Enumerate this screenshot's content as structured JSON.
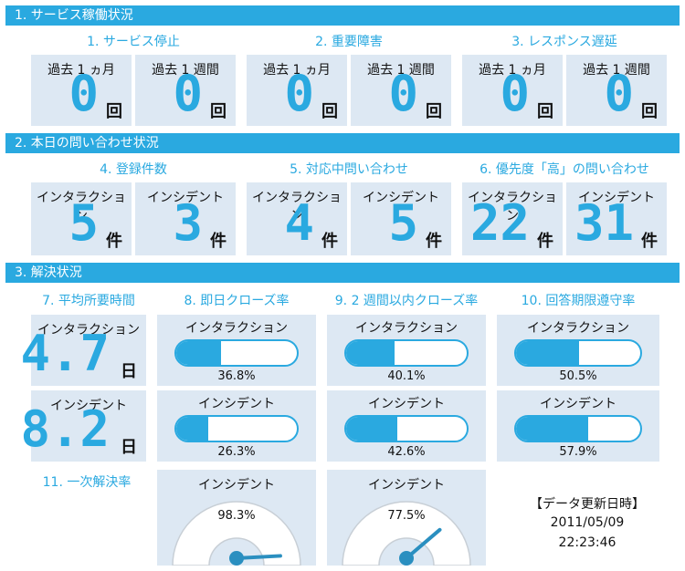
{
  "sections": [
    {
      "title": "1. サービス稼働状況",
      "groups": [
        {
          "title": "1. サービス停止",
          "cards": [
            {
              "label": "過去 1 ヵ月",
              "value": 0,
              "unit": "回"
            },
            {
              "label": "過去 1 週間",
              "value": 0,
              "unit": "回"
            }
          ]
        },
        {
          "title": "2. 重要障害",
          "cards": [
            {
              "label": "過去 1 ヵ月",
              "value": 0,
              "unit": "回"
            },
            {
              "label": "過去 1 週間",
              "value": 0,
              "unit": "回"
            }
          ]
        },
        {
          "title": "3. レスポンス遅延",
          "cards": [
            {
              "label": "過去 1 ヵ月",
              "value": 0,
              "unit": "回"
            },
            {
              "label": "過去 1 週間",
              "value": 0,
              "unit": "回"
            }
          ]
        }
      ]
    },
    {
      "title": "2. 本日の問い合わせ状況",
      "groups": [
        {
          "title": "4. 登録件数",
          "cards": [
            {
              "label": "インタラクション",
              "value": 5,
              "unit": "件"
            },
            {
              "label": "インシデント",
              "value": 3,
              "unit": "件"
            }
          ]
        },
        {
          "title": "5. 対応中問い合わせ",
          "cards": [
            {
              "label": "インタラクション",
              "value": 4,
              "unit": "件"
            },
            {
              "label": "インシデント",
              "value": 5,
              "unit": "件"
            }
          ]
        },
        {
          "title": "6. 優先度「高」の問い合わせ",
          "cards": [
            {
              "label": "インタラクション",
              "value": 22,
              "unit": "件"
            },
            {
              "label": "インシデント",
              "value": 31,
              "unit": "件"
            }
          ]
        }
      ]
    },
    {
      "title": "3. 解決状況",
      "groups": [
        {
          "title": "7. 平均所要時間",
          "cards": [
            {
              "label": "インタラクション",
              "value": 4.7,
              "unit": "日"
            },
            {
              "label": "インシデント",
              "value": 8.2,
              "unit": "日"
            }
          ]
        },
        {
          "title": "8. 即日クローズ率",
          "bars": [
            {
              "label": "インタラクション",
              "value": 36.8,
              "value_label": "36.8%"
            },
            {
              "label": "インシデント",
              "value": 26.3,
              "value_label": "26.3%"
            }
          ]
        },
        {
          "title": "9. 2 週間以内クローズ率",
          "bars": [
            {
              "label": "インタラクション",
              "value": 40.1,
              "value_label": "40.1%"
            },
            {
              "label": "インシデント",
              "value": 42.6,
              "value_label": "42.6%"
            }
          ]
        },
        {
          "title": "10. 回答期限遵守率",
          "bars": [
            {
              "label": "インタラクション",
              "value": 50.5,
              "value_label": "50.5%"
            },
            {
              "label": "インシデント",
              "value": 57.9,
              "value_label": "57.9%"
            }
          ]
        }
      ]
    }
  ],
  "first_resolution": {
    "title": "11. 一次解決率",
    "gauges": [
      {
        "label": "インシデント",
        "value": 98.3,
        "value_label": "98.3%"
      },
      {
        "label": "インシデント",
        "value": 77.5,
        "value_label": "77.5%"
      }
    ]
  },
  "update": {
    "title": "【データ更新日時】",
    "date": "2011/05/09",
    "time": "22:23:46"
  }
}
